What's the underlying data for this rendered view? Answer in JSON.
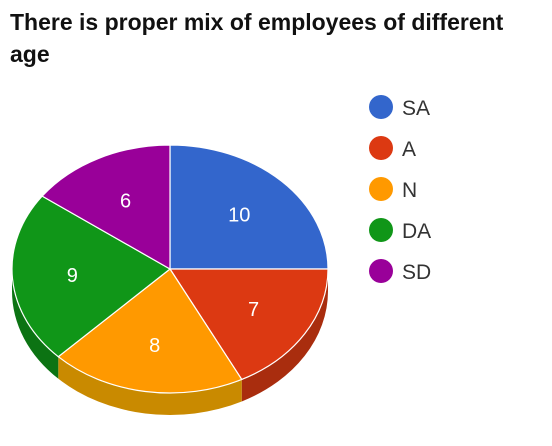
{
  "chart_data": {
    "type": "pie",
    "title": "There is proper mix of employees of different age",
    "categories": [
      "SA",
      "A",
      "N",
      "DA",
      "SD"
    ],
    "values": [
      10,
      7,
      8,
      9,
      6
    ],
    "colors": [
      "#3366cc",
      "#dc3912",
      "#ff9900",
      "#109618",
      "#990099"
    ],
    "side_colors": [
      "#2a55aa",
      "#a92d0e",
      "#c98a00",
      "#0c7313",
      "#770077"
    ],
    "legend_position": "right",
    "style": "3d"
  }
}
